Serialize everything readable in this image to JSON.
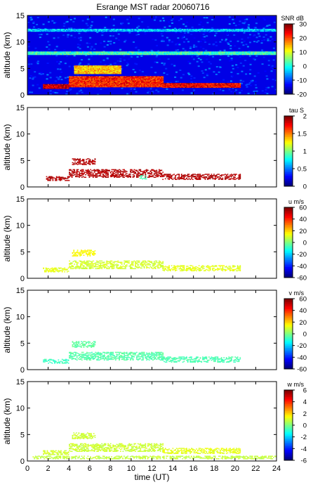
{
  "title": "Esrange MST radar 20060716",
  "chart_data": [
    {
      "type": "heatmap",
      "ylabel": "altitude (km)",
      "ylim": [
        0,
        15
      ],
      "yticks": [
        "0",
        "5",
        "10",
        "15"
      ],
      "xlim": [
        0,
        24
      ],
      "colorbar": {
        "label": "SNR dB",
        "range": [
          -20,
          30
        ],
        "ticks": [
          "30",
          "20",
          "10",
          "0",
          "-10",
          "-20"
        ]
      },
      "layers": [
        {
          "hour_start": 1.5,
          "hour_end": 4,
          "alt_start": 1.2,
          "alt_end": 2.0,
          "value": 26
        },
        {
          "hour_start": 4,
          "hour_end": 13,
          "alt_start": 1.5,
          "alt_end": 3.5,
          "value": 22
        },
        {
          "hour_start": 13,
          "hour_end": 20.5,
          "alt_start": 1.4,
          "alt_end": 2.2,
          "value": 24
        },
        {
          "hour_start": 4.5,
          "hour_end": 9,
          "alt_start": 4.0,
          "alt_end": 5.5,
          "value": 14
        },
        {
          "hour_start": 0,
          "hour_end": 24,
          "alt_start": 7.6,
          "alt_end": 8.2,
          "value": 2
        },
        {
          "hour_start": 0,
          "hour_end": 24,
          "alt_start": 12.0,
          "alt_end": 12.4,
          "value": -4
        }
      ]
    },
    {
      "type": "heatmap",
      "ylabel": "altitude (km)",
      "ylim": [
        0,
        15
      ],
      "yticks": [
        "0",
        "5",
        "10",
        "15"
      ],
      "xlim": [
        0,
        24
      ],
      "colorbar": {
        "label": "tau S",
        "range": [
          0,
          2
        ],
        "ticks": [
          "2",
          "1.5",
          "1",
          "0.5",
          "0"
        ]
      },
      "layers": [
        {
          "hour_start": 1.8,
          "hour_end": 4,
          "alt_start": 1.2,
          "alt_end": 2.0,
          "value": 1.9
        },
        {
          "hour_start": 4,
          "hour_end": 13,
          "alt_start": 1.8,
          "alt_end": 3.3,
          "value": 1.9
        },
        {
          "hour_start": 13,
          "hour_end": 20.5,
          "alt_start": 1.4,
          "alt_end": 2.4,
          "value": 1.9
        },
        {
          "hour_start": 4.3,
          "hour_end": 6.5,
          "alt_start": 4.2,
          "alt_end": 5.3,
          "value": 1.9
        },
        {
          "hour_start": 10.8,
          "hour_end": 11.4,
          "alt_start": 1.5,
          "alt_end": 2.2,
          "value": 0.9
        }
      ]
    },
    {
      "type": "heatmap",
      "ylabel": "altitude (km)",
      "ylim": [
        0,
        15
      ],
      "yticks": [
        "0",
        "5",
        "10",
        "15"
      ],
      "xlim": [
        0,
        24
      ],
      "colorbar": {
        "label": "u m/s",
        "range": [
          -60,
          60
        ],
        "ticks": [
          "60",
          "40",
          "20",
          "0",
          "-20",
          "-40",
          "-60"
        ]
      },
      "layers": [
        {
          "hour_start": 1.5,
          "hour_end": 4,
          "alt_start": 1.2,
          "alt_end": 2.0,
          "value": 12
        },
        {
          "hour_start": 4,
          "hour_end": 13,
          "alt_start": 1.8,
          "alt_end": 3.3,
          "value": 10
        },
        {
          "hour_start": 13,
          "hour_end": 20.5,
          "alt_start": 1.4,
          "alt_end": 2.4,
          "value": 12
        },
        {
          "hour_start": 4.3,
          "hour_end": 6.5,
          "alt_start": 4.2,
          "alt_end": 5.3,
          "value": 15
        }
      ]
    },
    {
      "type": "heatmap",
      "ylabel": "altitude (km)",
      "ylim": [
        0,
        15
      ],
      "yticks": [
        "0",
        "5",
        "10",
        "15"
      ],
      "xlim": [
        0,
        24
      ],
      "colorbar": {
        "label": "v m/s",
        "range": [
          -60,
          60
        ],
        "ticks": [
          "60",
          "40",
          "20",
          "0",
          "-20",
          "-40",
          "-60"
        ]
      },
      "layers": [
        {
          "hour_start": 1.5,
          "hour_end": 4,
          "alt_start": 1.2,
          "alt_end": 2.0,
          "value": -8
        },
        {
          "hour_start": 4,
          "hour_end": 13,
          "alt_start": 1.8,
          "alt_end": 3.3,
          "value": -5
        },
        {
          "hour_start": 13,
          "hour_end": 20.5,
          "alt_start": 1.4,
          "alt_end": 2.4,
          "value": -6
        },
        {
          "hour_start": 4.3,
          "hour_end": 6.5,
          "alt_start": 4.2,
          "alt_end": 5.3,
          "value": -4
        }
      ]
    },
    {
      "type": "heatmap",
      "ylabel": "altitude (km)",
      "ylim": [
        0,
        15
      ],
      "yticks": [
        "0",
        "5",
        "10",
        "15"
      ],
      "xlim": [
        0,
        24
      ],
      "xlabel": "time (UT)",
      "xticks": [
        "0",
        "2",
        "4",
        "6",
        "8",
        "10",
        "12",
        "14",
        "16",
        "18",
        "20",
        "22",
        "24"
      ],
      "colorbar": {
        "label": "w m/s",
        "range": [
          -6,
          6
        ],
        "ticks": [
          "6",
          "4",
          "2",
          "0",
          "-2",
          "-4",
          "-6"
        ]
      },
      "layers": [
        {
          "hour_start": 0.5,
          "hour_end": 24,
          "alt_start": 0.4,
          "alt_end": 0.9,
          "value": 0.8
        },
        {
          "hour_start": 1.5,
          "hour_end": 4,
          "alt_start": 1.2,
          "alt_end": 2.0,
          "value": 1.0
        },
        {
          "hour_start": 4,
          "hour_end": 13,
          "alt_start": 1.8,
          "alt_end": 3.3,
          "value": 0.9
        },
        {
          "hour_start": 13,
          "hour_end": 20.5,
          "alt_start": 1.4,
          "alt_end": 2.4,
          "value": 1.2
        },
        {
          "hour_start": 4.3,
          "hour_end": 6.5,
          "alt_start": 4.2,
          "alt_end": 5.3,
          "value": 0.9
        }
      ]
    }
  ]
}
